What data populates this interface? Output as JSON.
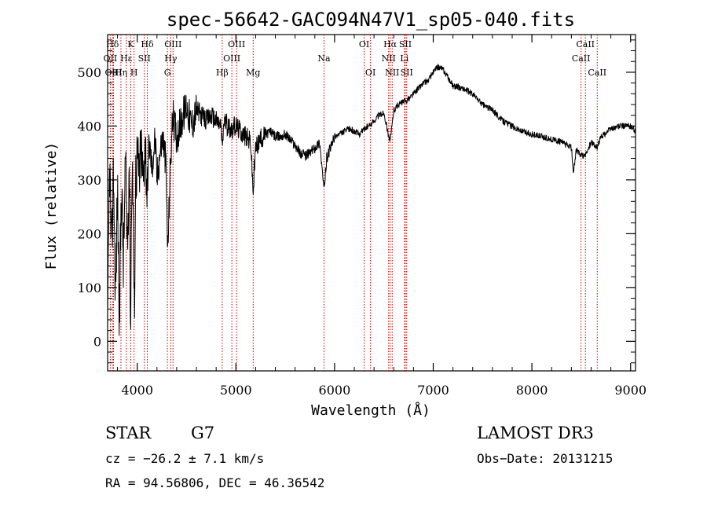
{
  "chart_data": {
    "type": "line",
    "title": "spec-56642-GAC094N47V1_sp05-040.fits",
    "xlabel": "Wavelength (Å)",
    "ylabel": "Flux (relative)",
    "xlim": [
      3700,
      9050
    ],
    "ylim": [
      -55,
      570
    ],
    "xticks": [
      4000,
      5000,
      6000,
      7000,
      8000,
      9000
    ],
    "yticks": [
      0,
      100,
      200,
      300,
      400,
      500
    ],
    "series": [
      {
        "name": "spectrum",
        "color": "#000000",
        "anchors": [
          [
            3700,
            0
          ],
          [
            3720,
            340
          ],
          [
            3740,
            150
          ],
          [
            3760,
            320
          ],
          [
            3780,
            80
          ],
          [
            3800,
            280
          ],
          [
            3820,
            40
          ],
          [
            3840,
            300
          ],
          [
            3860,
            140
          ],
          [
            3880,
            330
          ],
          [
            3900,
            180
          ],
          [
            3920,
            350
          ],
          [
            3933,
            10
          ],
          [
            3945,
            330
          ],
          [
            3960,
            260
          ],
          [
            3968,
            20
          ],
          [
            3985,
            310
          ],
          [
            4000,
            340
          ],
          [
            4020,
            300
          ],
          [
            4040,
            360
          ],
          [
            4060,
            290
          ],
          [
            4080,
            380
          ],
          [
            4101,
            280
          ],
          [
            4120,
            370
          ],
          [
            4150,
            320
          ],
          [
            4180,
            380
          ],
          [
            4200,
            300
          ],
          [
            4230,
            350
          ],
          [
            4260,
            380
          ],
          [
            4290,
            330
          ],
          [
            4310,
            160
          ],
          [
            4330,
            300
          ],
          [
            4360,
            420
          ],
          [
            4400,
            380
          ],
          [
            4450,
            410
          ],
          [
            4500,
            440
          ],
          [
            4550,
            400
          ],
          [
            4600,
            430
          ],
          [
            4650,
            420
          ],
          [
            4700,
            410
          ],
          [
            4750,
            420
          ],
          [
            4800,
            410
          ],
          [
            4850,
            400
          ],
          [
            4861,
            360
          ],
          [
            4880,
            410
          ],
          [
            4920,
            400
          ],
          [
            4960,
            395
          ],
          [
            5000,
            400
          ],
          [
            5050,
            390
          ],
          [
            5100,
            380
          ],
          [
            5150,
            370
          ],
          [
            5175,
            275
          ],
          [
            5200,
            360
          ],
          [
            5250,
            375
          ],
          [
            5300,
            385
          ],
          [
            5350,
            390
          ],
          [
            5400,
            380
          ],
          [
            5450,
            380
          ],
          [
            5500,
            385
          ],
          [
            5550,
            375
          ],
          [
            5600,
            365
          ],
          [
            5650,
            350
          ],
          [
            5700,
            345
          ],
          [
            5750,
            350
          ],
          [
            5800,
            360
          ],
          [
            5850,
            370
          ],
          [
            5893,
            280
          ],
          [
            5920,
            340
          ],
          [
            5960,
            360
          ],
          [
            6000,
            380
          ],
          [
            6050,
            385
          ],
          [
            6100,
            390
          ],
          [
            6150,
            395
          ],
          [
            6200,
            390
          ],
          [
            6250,
            385
          ],
          [
            6300,
            395
          ],
          [
            6350,
            400
          ],
          [
            6400,
            410
          ],
          [
            6450,
            420
          ],
          [
            6500,
            425
          ],
          [
            6563,
            370
          ],
          [
            6600,
            430
          ],
          [
            6650,
            440
          ],
          [
            6700,
            445
          ],
          [
            6750,
            450
          ],
          [
            6800,
            460
          ],
          [
            6850,
            470
          ],
          [
            6900,
            480
          ],
          [
            6950,
            485
          ],
          [
            7000,
            500
          ],
          [
            7050,
            510
          ],
          [
            7100,
            505
          ],
          [
            7150,
            490
          ],
          [
            7200,
            475
          ],
          [
            7300,
            470
          ],
          [
            7400,
            460
          ],
          [
            7500,
            440
          ],
          [
            7600,
            430
          ],
          [
            7700,
            410
          ],
          [
            7800,
            400
          ],
          [
            7900,
            390
          ],
          [
            8000,
            385
          ],
          [
            8100,
            380
          ],
          [
            8200,
            375
          ],
          [
            8300,
            370
          ],
          [
            8400,
            360
          ],
          [
            8420,
            315
          ],
          [
            8450,
            355
          ],
          [
            8498,
            345
          ],
          [
            8542,
            345
          ],
          [
            8600,
            370
          ],
          [
            8662,
            360
          ],
          [
            8700,
            380
          ],
          [
            8800,
            395
          ],
          [
            8900,
            400
          ],
          [
            9000,
            400
          ],
          [
            9050,
            390
          ]
        ]
      }
    ],
    "emission_lines": [
      {
        "label": "Hδ",
        "lambda": 3750,
        "row": 1
      },
      {
        "label": "OII",
        "lambda": 3727,
        "row": 2
      },
      {
        "label": "OIII",
        "lambda": 3760,
        "row": 3
      },
      {
        "label": "Hε",
        "lambda": 3889,
        "row": 2
      },
      {
        "label": "K",
        "lambda": 3934,
        "row": 1
      },
      {
        "label": "Hη",
        "lambda": 3835,
        "row": 3
      },
      {
        "label": "H",
        "lambda": 3968,
        "row": 3
      },
      {
        "label": "Hδ",
        "lambda": 4102,
        "row": 1
      },
      {
        "label": "SII",
        "lambda": 4072,
        "row": 2
      },
      {
        "label": "OIII",
        "lambda": 4363,
        "row": 1
      },
      {
        "label": "Hγ",
        "lambda": 4340,
        "row": 2
      },
      {
        "label": "G",
        "lambda": 4306,
        "row": 3
      },
      {
        "label": "Hβ",
        "lambda": 4861,
        "row": 3
      },
      {
        "label": "OIII",
        "lambda": 5007,
        "row": 1
      },
      {
        "label": "OIII",
        "lambda": 4959,
        "row": 2
      },
      {
        "label": "Mg",
        "lambda": 5175,
        "row": 3
      },
      {
        "label": "Na",
        "lambda": 5893,
        "row": 2
      },
      {
        "label": "OI",
        "lambda": 6300,
        "row": 1
      },
      {
        "label": "OI",
        "lambda": 6364,
        "row": 3
      },
      {
        "label": "Hα",
        "lambda": 6563,
        "row": 1
      },
      {
        "label": "NII",
        "lambda": 6548,
        "row": 2
      },
      {
        "label": "NII",
        "lambda": 6584,
        "row": 3
      },
      {
        "label": "SII",
        "lambda": 6717,
        "row": 1
      },
      {
        "label": "Li",
        "lambda": 6708,
        "row": 2
      },
      {
        "label": "SII",
        "lambda": 6731,
        "row": 3
      },
      {
        "label": "CaII",
        "lambda": 8542,
        "row": 1
      },
      {
        "label": "CaII",
        "lambda": 8498,
        "row": 2
      },
      {
        "label": "CaII",
        "lambda": 8662,
        "row": 3
      }
    ]
  },
  "info": {
    "object_class": "STAR",
    "subclass": "G7",
    "redshift": "cz = −26.2 ± 7.1 km/s",
    "coordinates": "RA =  94.56806, DEC =  46.36542",
    "survey": "LAMOST DR3",
    "obs_date": "Obs−Date: 20131215"
  }
}
